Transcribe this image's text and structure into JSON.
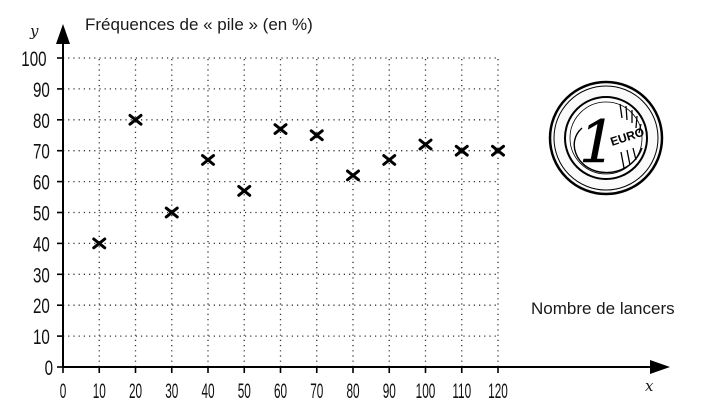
{
  "chart_data": {
    "type": "scatter",
    "title": "Fréquences de « pile » (en %)",
    "xlabel": "Nombre de lancers",
    "x_axis_name": "x",
    "y_axis_name": "y",
    "xlim": [
      0,
      120
    ],
    "ylim": [
      0,
      100
    ],
    "x_ticks": [
      "0",
      "10",
      "20",
      "30",
      "40",
      "50",
      "60",
      "70",
      "80",
      "90",
      "100",
      "110",
      "120"
    ],
    "y_ticks": [
      "0",
      "10",
      "20",
      "30",
      "40",
      "50",
      "60",
      "70",
      "80",
      "90",
      "100"
    ],
    "grid": true,
    "marker": "cross",
    "points": [
      {
        "x": 10,
        "y": 40
      },
      {
        "x": 20,
        "y": 80
      },
      {
        "x": 30,
        "y": 50
      },
      {
        "x": 40,
        "y": 67
      },
      {
        "x": 50,
        "y": 57
      },
      {
        "x": 60,
        "y": 77
      },
      {
        "x": 70,
        "y": 75
      },
      {
        "x": 80,
        "y": 62
      },
      {
        "x": 90,
        "y": 67
      },
      {
        "x": 100,
        "y": 72
      },
      {
        "x": 110,
        "y": 70
      },
      {
        "x": 120,
        "y": 70
      }
    ]
  },
  "illustration": {
    "coin_icon": "one-euro-coin-icon",
    "coin_text": "EURO"
  }
}
